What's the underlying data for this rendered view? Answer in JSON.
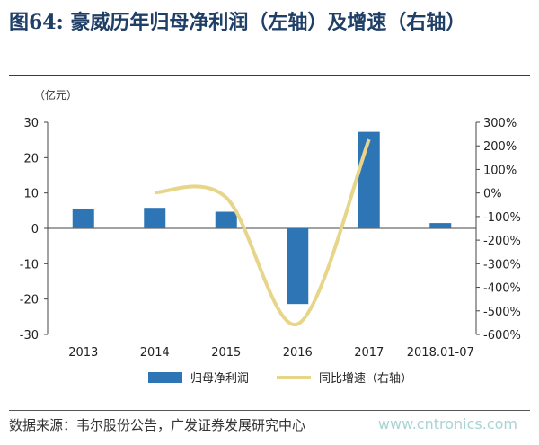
{
  "header": {
    "figure_no": "图64:",
    "title": "豪威历年归母净利润（左轴）及增速（右轴）"
  },
  "chart_data": {
    "type": "bar+line",
    "unit_label": "（亿元）",
    "categories": [
      "2013",
      "2014",
      "2015",
      "2016",
      "2017",
      "2018.01-07"
    ],
    "left_axis": {
      "min": -30,
      "max": 30,
      "ticks": [
        30,
        20,
        10,
        0,
        -10,
        -20,
        -30
      ]
    },
    "right_axis": {
      "min": -600,
      "max": 300,
      "ticks": [
        "300%",
        "200%",
        "100%",
        "0%",
        "-100%",
        "-200%",
        "-300%",
        "-400%",
        "-500%",
        "-600%"
      ]
    },
    "series": [
      {
        "name": "归母净利润",
        "type": "bar",
        "axis": "left",
        "color": "#2e75b6",
        "values": [
          5.6,
          5.8,
          4.7,
          -21.4,
          27.3,
          1.5
        ]
      },
      {
        "name": "同比增速（右轴）",
        "type": "line",
        "axis": "right",
        "color": "#e7d58a",
        "values": [
          null,
          2,
          -19,
          -556,
          227,
          null
        ]
      }
    ],
    "legend_position": "bottom"
  },
  "footer": {
    "source": "数据来源：韦尔股份公告，广发证券发展研究中心",
    "watermark": "www.cntronics.com"
  }
}
